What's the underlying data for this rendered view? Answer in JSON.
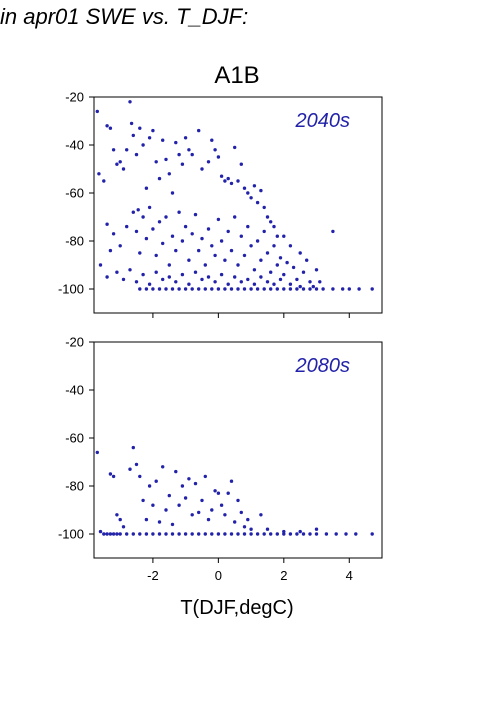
{
  "page_title": "in apr01 SWE vs. T_DJF:",
  "chart_data": {
    "type": "scatter",
    "title": "A1B",
    "xlabel": "T(DJF,degC)",
    "ylabel": "",
    "xlim": [
      -3.8,
      5.0
    ],
    "ylim": [
      -110,
      -20
    ],
    "xticks": [
      -2,
      0,
      2,
      4
    ],
    "yticks": [
      -100,
      -80,
      -60,
      -40,
      -20
    ],
    "grid": false,
    "point_color": "#2222aa",
    "panels": [
      {
        "label": "2040s",
        "points": [
          [
            -3.7,
            -26
          ],
          [
            -3.65,
            -52
          ],
          [
            -3.5,
            -55
          ],
          [
            -3.4,
            -32
          ],
          [
            -3.3,
            -33
          ],
          [
            -3.2,
            -42
          ],
          [
            -3.1,
            -48
          ],
          [
            -3.0,
            -47
          ],
          [
            -2.9,
            -50
          ],
          [
            -2.8,
            -42
          ],
          [
            -2.7,
            -22
          ],
          [
            -2.65,
            -31
          ],
          [
            -2.6,
            -36
          ],
          [
            -2.5,
            -44
          ],
          [
            -2.45,
            -67
          ],
          [
            -2.4,
            -33
          ],
          [
            -2.3,
            -40
          ],
          [
            -2.2,
            -58
          ],
          [
            -2.1,
            -37
          ],
          [
            -2.0,
            -34
          ],
          [
            -1.9,
            -47
          ],
          [
            -1.8,
            -54
          ],
          [
            -1.7,
            -38
          ],
          [
            -1.6,
            -46
          ],
          [
            -1.5,
            -52
          ],
          [
            -1.4,
            -60
          ],
          [
            -1.3,
            -39
          ],
          [
            -1.2,
            -44
          ],
          [
            -1.1,
            -48
          ],
          [
            -1.0,
            -37
          ],
          [
            -0.9,
            -42
          ],
          [
            -0.8,
            -44
          ],
          [
            -0.6,
            -34
          ],
          [
            -0.5,
            -50
          ],
          [
            -0.3,
            -47
          ],
          [
            -0.2,
            -38
          ],
          [
            -0.1,
            -42
          ],
          [
            0.0,
            -45
          ],
          [
            0.1,
            -53
          ],
          [
            0.2,
            -55
          ],
          [
            0.3,
            -54
          ],
          [
            0.4,
            -56
          ],
          [
            0.5,
            -41
          ],
          [
            0.6,
            -55
          ],
          [
            0.7,
            -48
          ],
          [
            0.8,
            -58
          ],
          [
            0.9,
            -60
          ],
          [
            1.0,
            -62
          ],
          [
            1.1,
            -57
          ],
          [
            1.2,
            -64
          ],
          [
            1.3,
            -59
          ],
          [
            1.4,
            -66
          ],
          [
            1.5,
            -70
          ],
          [
            1.6,
            -72
          ],
          [
            1.7,
            -74
          ],
          [
            1.8,
            -78
          ],
          [
            2.0,
            -78
          ],
          [
            2.2,
            -82
          ],
          [
            2.5,
            -85
          ],
          [
            2.7,
            -88
          ],
          [
            3.0,
            -92
          ],
          [
            3.5,
            -76
          ],
          [
            -3.4,
            -73
          ],
          [
            -3.3,
            -84
          ],
          [
            -3.2,
            -77
          ],
          [
            -3.0,
            -82
          ],
          [
            -2.8,
            -74
          ],
          [
            -2.6,
            -68
          ],
          [
            -2.5,
            -76
          ],
          [
            -2.4,
            -85
          ],
          [
            -2.3,
            -70
          ],
          [
            -2.2,
            -79
          ],
          [
            -2.1,
            -66
          ],
          [
            -2.0,
            -75
          ],
          [
            -1.9,
            -86
          ],
          [
            -1.8,
            -72
          ],
          [
            -1.7,
            -81
          ],
          [
            -1.6,
            -70
          ],
          [
            -1.5,
            -90
          ],
          [
            -1.4,
            -78
          ],
          [
            -1.3,
            -84
          ],
          [
            -1.2,
            -68
          ],
          [
            -1.1,
            -80
          ],
          [
            -1.0,
            -74
          ],
          [
            -0.9,
            -88
          ],
          [
            -0.8,
            -77
          ],
          [
            -0.7,
            -69
          ],
          [
            -0.6,
            -84
          ],
          [
            -0.5,
            -79
          ],
          [
            -0.4,
            -90
          ],
          [
            -0.3,
            -75
          ],
          [
            -0.2,
            -82
          ],
          [
            -0.1,
            -86
          ],
          [
            0.0,
            -71
          ],
          [
            0.1,
            -80
          ],
          [
            0.2,
            -88
          ],
          [
            0.3,
            -76
          ],
          [
            0.4,
            -84
          ],
          [
            0.5,
            -70
          ],
          [
            0.6,
            -90
          ],
          [
            0.7,
            -78
          ],
          [
            0.8,
            -86
          ],
          [
            0.9,
            -74
          ],
          [
            1.0,
            -82
          ],
          [
            1.1,
            -92
          ],
          [
            1.2,
            -80
          ],
          [
            1.3,
            -88
          ],
          [
            1.4,
            -76
          ],
          [
            1.5,
            -85
          ],
          [
            1.6,
            -93
          ],
          [
            1.7,
            -82
          ],
          [
            1.8,
            -90
          ],
          [
            1.9,
            -87
          ],
          [
            2.0,
            -94
          ],
          [
            2.1,
            -89
          ],
          [
            2.3,
            -91
          ],
          [
            2.4,
            -96
          ],
          [
            2.6,
            -93
          ],
          [
            2.8,
            -97
          ],
          [
            3.1,
            -97
          ],
          [
            -3.6,
            -90
          ],
          [
            -3.4,
            -95
          ],
          [
            -3.1,
            -93
          ],
          [
            -2.9,
            -96
          ],
          [
            -2.7,
            -92
          ],
          [
            -2.5,
            -97
          ],
          [
            -2.3,
            -94
          ],
          [
            -2.1,
            -98
          ],
          [
            -1.9,
            -93
          ],
          [
            -1.7,
            -96
          ],
          [
            -1.5,
            -95
          ],
          [
            -1.3,
            -97
          ],
          [
            -1.1,
            -94
          ],
          [
            -0.9,
            -98
          ],
          [
            -0.7,
            -93
          ],
          [
            -0.5,
            -96
          ],
          [
            -0.3,
            -95
          ],
          [
            -0.1,
            -97
          ],
          [
            0.1,
            -94
          ],
          [
            0.3,
            -98
          ],
          [
            0.5,
            -95
          ],
          [
            0.7,
            -97
          ],
          [
            0.9,
            -96
          ],
          [
            1.1,
            -98
          ],
          [
            1.3,
            -95
          ],
          [
            1.5,
            -97
          ],
          [
            1.7,
            -98
          ],
          [
            1.9,
            -96
          ],
          [
            2.2,
            -98
          ],
          [
            2.5,
            -99
          ],
          [
            2.9,
            -99
          ],
          [
            -2.4,
            -100
          ],
          [
            -2.2,
            -100
          ],
          [
            -2.0,
            -100
          ],
          [
            -1.8,
            -100
          ],
          [
            -1.6,
            -100
          ],
          [
            -1.4,
            -100
          ],
          [
            -1.2,
            -100
          ],
          [
            -1.0,
            -100
          ],
          [
            -0.8,
            -100
          ],
          [
            -0.6,
            -100
          ],
          [
            -0.4,
            -100
          ],
          [
            -0.2,
            -100
          ],
          [
            0.0,
            -100
          ],
          [
            0.2,
            -100
          ],
          [
            0.4,
            -100
          ],
          [
            0.6,
            -100
          ],
          [
            0.8,
            -100
          ],
          [
            1.0,
            -100
          ],
          [
            1.2,
            -100
          ],
          [
            1.4,
            -100
          ],
          [
            1.6,
            -100
          ],
          [
            1.8,
            -100
          ],
          [
            2.0,
            -100
          ],
          [
            2.2,
            -100
          ],
          [
            2.4,
            -100
          ],
          [
            2.6,
            -100
          ],
          [
            2.8,
            -100
          ],
          [
            3.0,
            -100
          ],
          [
            3.2,
            -100
          ],
          [
            3.5,
            -100
          ],
          [
            3.8,
            -100
          ],
          [
            4.0,
            -100
          ],
          [
            4.3,
            -100
          ],
          [
            4.7,
            -100
          ]
        ]
      },
      {
        "label": "2080s",
        "points": [
          [
            -3.7,
            -66
          ],
          [
            -3.6,
            -99
          ],
          [
            -3.3,
            -75
          ],
          [
            -3.2,
            -76
          ],
          [
            -3.1,
            -92
          ],
          [
            -3.0,
            -94
          ],
          [
            -2.9,
            -97
          ],
          [
            -2.7,
            -73
          ],
          [
            -2.6,
            -64
          ],
          [
            -2.5,
            -71
          ],
          [
            -2.4,
            -76
          ],
          [
            -2.3,
            -86
          ],
          [
            -2.2,
            -94
          ],
          [
            -2.1,
            -80
          ],
          [
            -2.0,
            -88
          ],
          [
            -1.9,
            -78
          ],
          [
            -1.8,
            -95
          ],
          [
            -1.7,
            -72
          ],
          [
            -1.6,
            -90
          ],
          [
            -1.5,
            -84
          ],
          [
            -1.4,
            -96
          ],
          [
            -1.3,
            -74
          ],
          [
            -1.2,
            -88
          ],
          [
            -1.1,
            -80
          ],
          [
            -1.0,
            -85
          ],
          [
            -0.9,
            -77
          ],
          [
            -0.8,
            -92
          ],
          [
            -0.7,
            -79
          ],
          [
            -0.6,
            -91
          ],
          [
            -0.5,
            -86
          ],
          [
            -0.4,
            -76
          ],
          [
            -0.3,
            -94
          ],
          [
            -0.2,
            -90
          ],
          [
            -0.1,
            -82
          ],
          [
            0.0,
            -83
          ],
          [
            0.1,
            -88
          ],
          [
            0.2,
            -92
          ],
          [
            0.3,
            -83
          ],
          [
            0.4,
            -78
          ],
          [
            0.5,
            -95
          ],
          [
            0.6,
            -86
          ],
          [
            0.7,
            -91
          ],
          [
            0.8,
            -97
          ],
          [
            0.9,
            -94
          ],
          [
            1.0,
            -98
          ],
          [
            1.3,
            -92
          ],
          [
            1.5,
            -98
          ],
          [
            2.0,
            -99
          ],
          [
            2.5,
            -99
          ],
          [
            3.0,
            -98
          ],
          [
            -3.5,
            -100
          ],
          [
            -3.4,
            -100
          ],
          [
            -3.3,
            -100
          ],
          [
            -3.2,
            -100
          ],
          [
            -3.1,
            -100
          ],
          [
            -3.0,
            -100
          ],
          [
            -2.8,
            -100
          ],
          [
            -2.6,
            -100
          ],
          [
            -2.4,
            -100
          ],
          [
            -2.2,
            -100
          ],
          [
            -2.0,
            -100
          ],
          [
            -1.8,
            -100
          ],
          [
            -1.6,
            -100
          ],
          [
            -1.4,
            -100
          ],
          [
            -1.2,
            -100
          ],
          [
            -1.0,
            -100
          ],
          [
            -0.8,
            -100
          ],
          [
            -0.6,
            -100
          ],
          [
            -0.4,
            -100
          ],
          [
            -0.2,
            -100
          ],
          [
            0.0,
            -100
          ],
          [
            0.2,
            -100
          ],
          [
            0.4,
            -100
          ],
          [
            0.6,
            -100
          ],
          [
            0.8,
            -100
          ],
          [
            1.0,
            -100
          ],
          [
            1.2,
            -100
          ],
          [
            1.4,
            -100
          ],
          [
            1.6,
            -100
          ],
          [
            1.8,
            -100
          ],
          [
            2.0,
            -100
          ],
          [
            2.2,
            -100
          ],
          [
            2.4,
            -100
          ],
          [
            2.6,
            -100
          ],
          [
            2.8,
            -100
          ],
          [
            3.0,
            -100
          ],
          [
            3.3,
            -100
          ],
          [
            3.6,
            -100
          ],
          [
            3.9,
            -100
          ],
          [
            4.2,
            -100
          ],
          [
            4.7,
            -100
          ]
        ]
      }
    ]
  }
}
